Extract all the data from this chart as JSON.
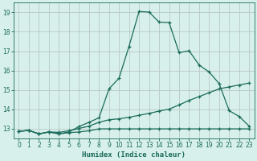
{
  "xlabel": "Humidex (Indice chaleur)",
  "xlim": [
    -0.5,
    23.5
  ],
  "ylim": [
    12.5,
    19.5
  ],
  "xticks": [
    0,
    1,
    2,
    3,
    4,
    5,
    6,
    7,
    8,
    9,
    10,
    11,
    12,
    13,
    14,
    15,
    16,
    17,
    18,
    19,
    20,
    21,
    22,
    23
  ],
  "yticks": [
    13,
    14,
    15,
    16,
    17,
    18,
    19
  ],
  "bg_color": "#d8f0ec",
  "grid_color": "#b8c8c4",
  "line_color": "#1a6b5a",
  "line1_x": [
    0,
    1,
    2,
    3,
    4,
    5,
    6,
    7,
    8,
    9,
    10,
    11,
    12,
    13,
    14,
    15,
    16,
    17,
    18,
    19,
    20,
    21,
    22,
    23
  ],
  "line1_y": [
    12.85,
    12.9,
    12.72,
    12.82,
    12.72,
    12.78,
    12.82,
    12.88,
    12.98,
    12.98,
    12.98,
    12.98,
    12.98,
    12.98,
    12.98,
    12.98,
    12.98,
    12.98,
    12.98,
    12.98,
    12.98,
    12.98,
    12.98,
    12.98
  ],
  "line2_x": [
    0,
    1,
    2,
    3,
    4,
    5,
    6,
    7,
    8,
    9,
    10,
    11,
    12,
    13,
    14,
    15,
    16,
    17,
    18,
    19,
    20,
    21,
    22,
    23
  ],
  "line2_y": [
    12.85,
    12.9,
    12.72,
    12.82,
    12.8,
    12.88,
    13.0,
    13.12,
    13.32,
    13.45,
    13.5,
    13.58,
    13.68,
    13.78,
    13.9,
    14.0,
    14.22,
    14.45,
    14.65,
    14.85,
    15.05,
    15.15,
    15.25,
    15.35
  ],
  "line3_x": [
    0,
    1,
    2,
    3,
    4,
    5,
    6,
    7,
    8,
    9,
    10,
    11,
    12,
    13,
    14,
    15,
    16,
    17,
    18,
    19,
    20,
    21,
    22,
    23
  ],
  "line3_y": [
    12.85,
    12.9,
    12.72,
    12.82,
    12.72,
    12.82,
    13.1,
    13.32,
    13.55,
    15.05,
    15.6,
    17.25,
    19.05,
    19.02,
    18.5,
    18.48,
    16.92,
    17.02,
    16.28,
    15.92,
    15.32,
    13.92,
    13.62,
    13.12
  ]
}
